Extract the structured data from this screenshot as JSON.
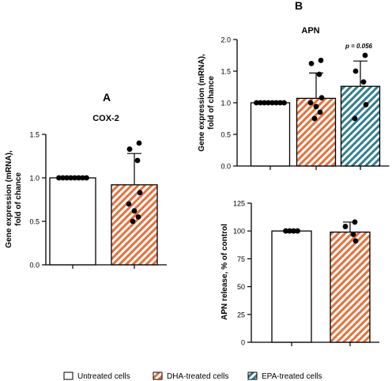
{
  "panels": [
    {
      "letter": "A",
      "title": "COX-2",
      "ylabel_lines": [
        "Gene expression (mRNA),",
        "fold of chance"
      ],
      "annotations": []
    },
    {
      "letter": "B",
      "title": "APN",
      "ylabel_lines": [
        "Gene expression (mRNA),",
        "fold of chance"
      ],
      "annotations": [
        {
          "text": "p = 0.056",
          "category": "EPA-treated cells"
        }
      ]
    },
    {
      "letter": "",
      "title": "",
      "ylabel_lines": [
        "APN release, % of control"
      ],
      "annotations": []
    }
  ],
  "legend": [
    {
      "label": "Untreated cells",
      "fill": "#ffffff",
      "stripe": ""
    },
    {
      "label": "DHA-treated cells",
      "fill": "#ffffff",
      "stripe": "#e8703a"
    },
    {
      "label": "EPA-treated cells",
      "fill": "#ffffff",
      "stripe": "#2f7f8f"
    }
  ],
  "colors": {
    "axis": "#000000",
    "dha": "#e8703a",
    "epa": "#2f7f8f",
    "points": "#000000"
  },
  "chart_data": [
    {
      "type": "bar",
      "title": "COX-2",
      "ylabel": "Gene expression (mRNA), fold of chance",
      "categories": [
        "Untreated cells",
        "DHA-treated cells"
      ],
      "values": [
        1.0,
        0.92
      ],
      "errors": [
        0.0,
        0.36
      ],
      "ylim": [
        0,
        1.5
      ],
      "yticks": [
        0.0,
        0.5,
        1.0,
        1.5
      ],
      "ytick_labels": [
        "0.0",
        "0.5",
        "1.0",
        "1.5"
      ],
      "points": [
        [
          1,
          1,
          1,
          1,
          1,
          1,
          1,
          1
        ],
        [
          1.4,
          1.33,
          1.2,
          0.83,
          0.7,
          0.62,
          0.55,
          0.5
        ]
      ]
    },
    {
      "type": "bar",
      "title": "APN",
      "ylabel": "Gene expression (mRNA), fold of chance",
      "categories": [
        "Untreated cells",
        "DHA-treated cells",
        "EPA-treated cells"
      ],
      "values": [
        1.0,
        1.07,
        1.26
      ],
      "errors": [
        0.0,
        0.4,
        0.4
      ],
      "ylim": [
        0,
        2.0
      ],
      "yticks": [
        0.0,
        0.5,
        1.0,
        1.5,
        2.0
      ],
      "ytick_labels": [
        "0.0",
        "0.5",
        "1.0",
        "1.5",
        "2.0"
      ],
      "points": [
        [
          1,
          1,
          1,
          1,
          1,
          1,
          1,
          1
        ],
        [
          1.67,
          1.62,
          1.45,
          1.08,
          1.0,
          0.94,
          0.85,
          0.75
        ],
        [
          1.75,
          1.5,
          1.33,
          0.97,
          0.75
        ]
      ]
    },
    {
      "type": "bar",
      "title": "",
      "ylabel": "APN release, % of control",
      "categories": [
        "Untreated cells",
        "DHA-treated cells"
      ],
      "values": [
        100,
        99
      ],
      "errors": [
        0,
        9
      ],
      "ylim": [
        0,
        125
      ],
      "yticks": [
        0,
        25,
        50,
        75,
        100,
        125
      ],
      "ytick_labels": [
        "0",
        "25",
        "50",
        "75",
        "100",
        "125"
      ],
      "points": [
        [
          100,
          100,
          100,
          100
        ],
        [
          108,
          104,
          97,
          91
        ]
      ]
    }
  ]
}
